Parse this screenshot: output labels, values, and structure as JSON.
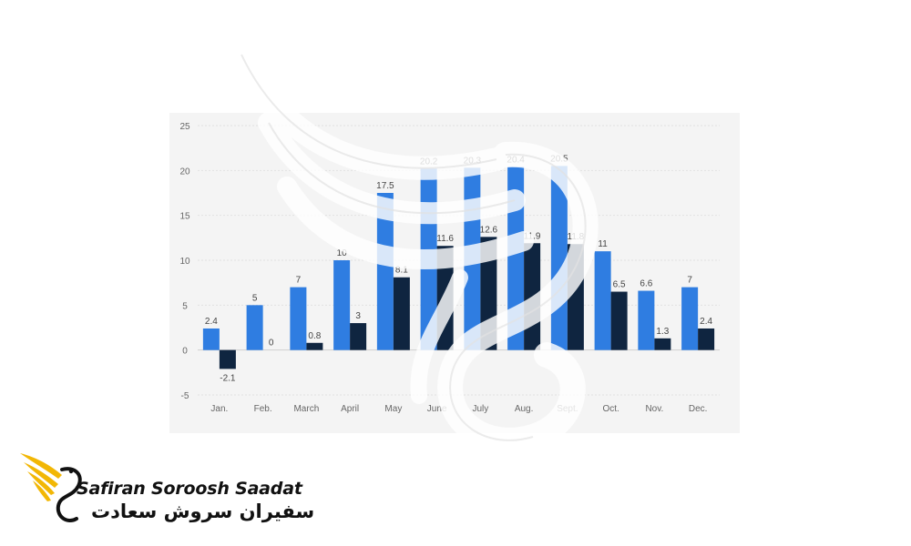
{
  "chart_data": {
    "type": "bar",
    "categories": [
      "Jan.",
      "Feb.",
      "March",
      "April",
      "May",
      "June",
      "July",
      "Aug.",
      "Sept.",
      "Oct.",
      "Nov.",
      "Dec."
    ],
    "series": [
      {
        "values": [
          2.4,
          5,
          7,
          10,
          17.5,
          20.2,
          20.3,
          20.4,
          20.5,
          11,
          6.6,
          7
        ],
        "color": "#2f7de1"
      },
      {
        "values": [
          -2.1,
          0,
          0.8,
          3,
          8.1,
          11.6,
          12.6,
          11.9,
          11.8,
          6.5,
          1.3,
          2.4
        ],
        "color": "#0f2540"
      }
    ],
    "value_labels": [
      [
        "2.4",
        "5",
        "7",
        "10",
        "17.5",
        "20.2",
        "20.3",
        "20.4",
        "20.5",
        "11",
        "6.6",
        "7"
      ],
      [
        "-2.1",
        "0",
        "0.8",
        "3",
        "8.1",
        "11.6",
        "12.6",
        "11.9",
        "11.8",
        "6.5",
        "1.3",
        "2.4"
      ]
    ],
    "ylim": [
      -5,
      25
    ],
    "yticks": [
      25,
      20,
      15,
      10,
      5,
      0,
      -5
    ],
    "ytick_labels": [
      "25",
      "20",
      "15",
      "10",
      "5",
      "0",
      "-5"
    ],
    "grid": true,
    "legend": "none",
    "title": "",
    "xlabel": "",
    "ylabel": ""
  },
  "branding": {
    "name": "Safiran Soroosh Saadat",
    "name_persian": "سفیران سروش سعادت",
    "icon": "phoenix-logo-icon",
    "accent_color": "#f2b705"
  }
}
